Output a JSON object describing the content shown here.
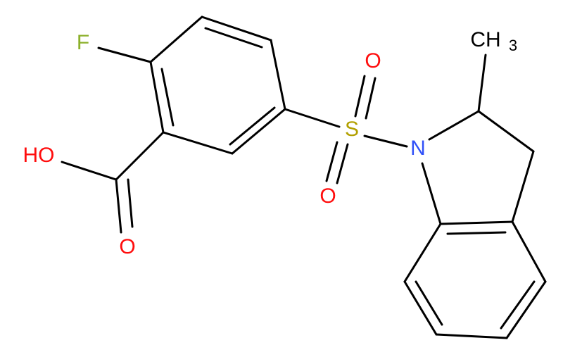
{
  "atoms": [
    {
      "label": "F"
    },
    {
      "label": "HO"
    },
    {
      "label": "O"
    },
    {
      "label": "S"
    },
    {
      "label": "O"
    },
    {
      "label": "O"
    },
    {
      "label": "N"
    },
    {
      "label": "CH",
      "subscript": "3"
    }
  ]
}
